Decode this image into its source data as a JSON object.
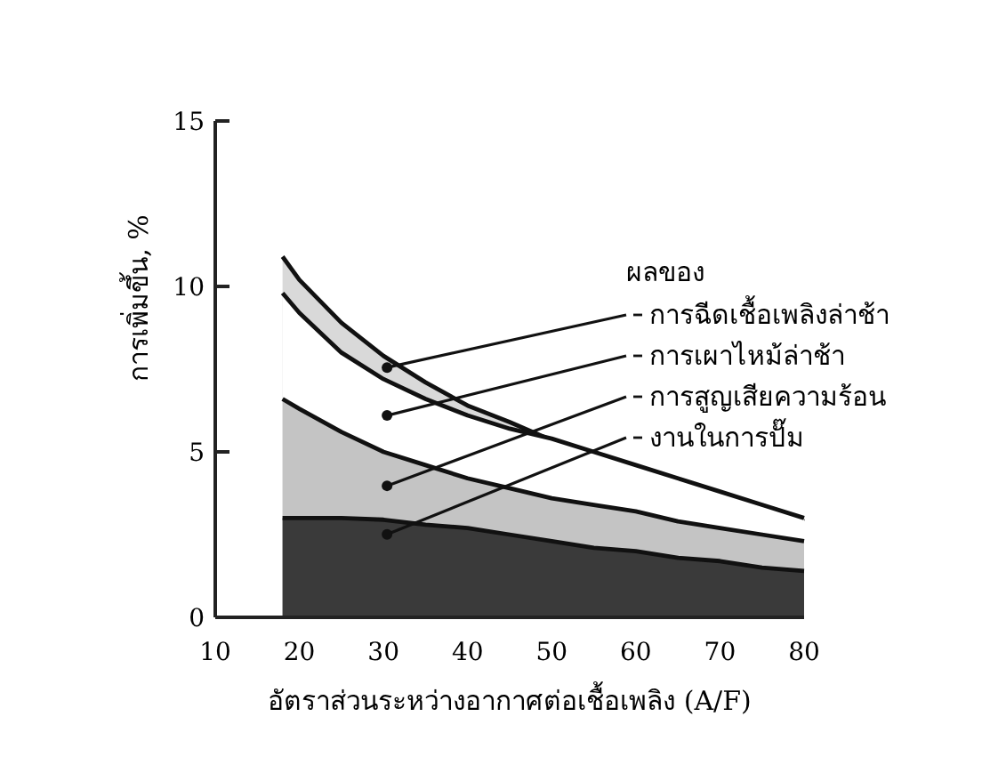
{
  "chart_data": {
    "type": "area",
    "xlabel": "อัตราส่วนระหว่างอากาศต่อเชื้อเพลิง (A/F)",
    "ylabel": "การเพิ่มขึ้น, %",
    "legend_title": "ผลของ",
    "x": [
      18,
      20,
      25,
      30,
      35,
      40,
      45,
      50,
      55,
      60,
      65,
      70,
      75,
      80
    ],
    "xlim": [
      10,
      80
    ],
    "xticks": [
      10,
      20,
      30,
      40,
      50,
      60,
      70,
      80
    ],
    "ylim": [
      0,
      15
    ],
    "yticks": [
      0,
      5,
      10,
      15
    ],
    "grid": false,
    "legend": "right",
    "series": [
      {
        "name": "การฉีดเชื้อเพลิงล่าช้า",
        "color": "#d9d9d9",
        "values": [
          10.9,
          10.2,
          8.9,
          7.9,
          7.1,
          6.4,
          5.9,
          5.35,
          4.9,
          4.5,
          4.1,
          3.7,
          3.3,
          2.9
        ]
      },
      {
        "name": "การเผาไหม้ล่าช้า",
        "color": "#ffffff",
        "values": [
          9.8,
          9.2,
          8.0,
          7.2,
          6.6,
          6.1,
          5.7,
          5.4,
          5.0,
          4.6,
          4.2,
          3.8,
          3.4,
          3.0
        ]
      },
      {
        "name": "การสูญเสียความร้อน",
        "color": "#c4c4c4",
        "values": [
          6.6,
          6.3,
          5.6,
          5.0,
          4.6,
          4.2,
          3.9,
          3.6,
          3.4,
          3.2,
          2.9,
          2.7,
          2.5,
          2.3
        ]
      },
      {
        "name": "งานในการปั๊ม",
        "color": "#3a3a3a",
        "values": [
          3.0,
          3.0,
          3.0,
          2.95,
          2.8,
          2.7,
          2.5,
          2.3,
          2.1,
          2.0,
          1.8,
          1.7,
          1.5,
          1.4
        ]
      }
    ]
  }
}
